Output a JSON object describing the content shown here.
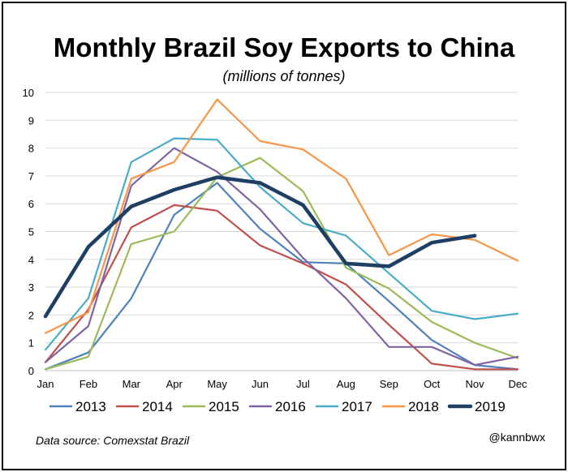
{
  "chart_data": {
    "type": "line",
    "title": "Monthly Brazil Soy Exports to China",
    "subtitle": "(millions of tonnes)",
    "xlabel": "",
    "ylabel": "",
    "categories": [
      "Jan",
      "Feb",
      "Mar",
      "Apr",
      "May",
      "Jun",
      "Jul",
      "Aug",
      "Sep",
      "Oct",
      "Nov",
      "Dec"
    ],
    "ylim": [
      0,
      10
    ],
    "yticks": [
      "0",
      "1",
      "2",
      "3",
      "4",
      "5",
      "6",
      "7",
      "8",
      "9",
      "10"
    ],
    "grid": "horizontal",
    "legend_position": "bottom",
    "series": [
      {
        "name": "2013",
        "color": "#4f81bd",
        "values": [
          0.05,
          0.65,
          2.6,
          5.6,
          6.75,
          5.1,
          3.9,
          3.85,
          2.5,
          1.1,
          0.2,
          0.05
        ]
      },
      {
        "name": "2014",
        "color": "#c0504d",
        "values": [
          0.3,
          2.2,
          5.15,
          5.95,
          5.75,
          4.5,
          3.85,
          3.1,
          1.65,
          0.25,
          0.05,
          0.05
        ]
      },
      {
        "name": "2015",
        "color": "#9bbb59",
        "values": [
          0.05,
          0.5,
          4.55,
          5.0,
          6.95,
          7.65,
          6.45,
          3.7,
          2.95,
          1.75,
          1.0,
          0.45
        ]
      },
      {
        "name": "2016",
        "color": "#8064a2",
        "values": [
          0.3,
          1.6,
          6.65,
          8.0,
          7.15,
          5.8,
          4.05,
          2.6,
          0.85,
          0.85,
          0.2,
          0.5
        ]
      },
      {
        "name": "2017",
        "color": "#4bacc6",
        "values": [
          0.75,
          2.6,
          7.5,
          8.35,
          8.3,
          6.6,
          5.3,
          4.85,
          3.5,
          2.15,
          1.85,
          2.05
        ]
      },
      {
        "name": "2018",
        "color": "#f79646",
        "values": [
          1.35,
          2.1,
          6.9,
          7.5,
          9.75,
          8.25,
          7.95,
          6.9,
          4.15,
          4.9,
          4.7,
          3.95
        ]
      },
      {
        "name": "2019",
        "color": "#1f3e64",
        "bold": true,
        "values": [
          1.95,
          4.45,
          5.9,
          6.5,
          6.95,
          6.75,
          5.95,
          3.85,
          3.75,
          4.6,
          4.85,
          null
        ]
      }
    ]
  },
  "footnote": "Data source: Comexstat Brazil",
  "credit": "@kannbwx"
}
